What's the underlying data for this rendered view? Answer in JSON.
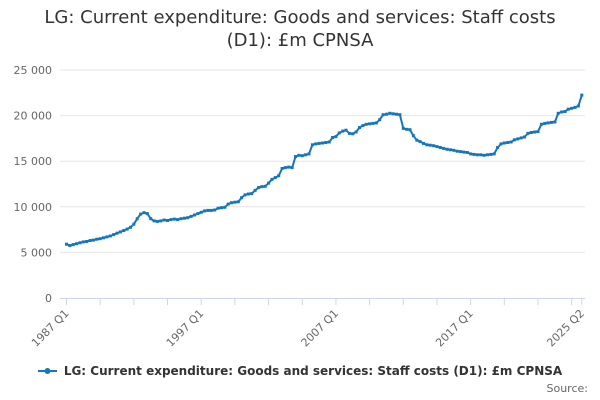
{
  "title": "LG: Current expenditure: Goods and services: Staff costs (D1): £m CPNSA",
  "source_label": "Source:",
  "legend": {
    "label": "LG: Current expenditure: Goods and services: Staff costs (D1): £m CPNSA",
    "marker": "line-with-dot"
  },
  "colors": {
    "series": "#1776bb",
    "grid": "#e6e6e6",
    "axis": "#ccd6eb",
    "tick_label": "#666666",
    "title": "#333333"
  },
  "chart_data": {
    "type": "line",
    "title": "LG: Current expenditure: Goods and services: Staff costs (D1): £m CPNSA",
    "unit": "£m",
    "frequency": "quarterly",
    "x_start": "1987 Q1",
    "x_end": "2025 Q2",
    "ylim": [
      0,
      25000
    ],
    "grid": "horizontal",
    "legend_position": "bottom",
    "marker_shape": "square",
    "y_ticks": [
      {
        "value": 0,
        "label": "0"
      },
      {
        "value": 5000,
        "label": "5 000"
      },
      {
        "value": 10000,
        "label": "10 000"
      },
      {
        "value": 15000,
        "label": "15 000"
      },
      {
        "value": 20000,
        "label": "20 000"
      },
      {
        "value": 25000,
        "label": "25 000"
      }
    ],
    "x_tick_interval_quarters": 10,
    "x_labeled_ticks": [
      {
        "index": 0,
        "label": "1987 Q1"
      },
      {
        "index": 40,
        "label": "1997 Q1"
      },
      {
        "index": 80,
        "label": "2007 Q1"
      },
      {
        "index": 120,
        "label": "2017 Q1"
      },
      {
        "index": 153,
        "label": "2025 Q2"
      }
    ],
    "values": [
      5900,
      5750,
      5850,
      5950,
      6050,
      6150,
      6200,
      6300,
      6350,
      6450,
      6500,
      6600,
      6700,
      6800,
      6950,
      7100,
      7250,
      7400,
      7550,
      7750,
      8100,
      8700,
      9200,
      9350,
      9250,
      8700,
      8450,
      8400,
      8450,
      8550,
      8500,
      8600,
      8650,
      8600,
      8700,
      8750,
      8800,
      8950,
      9100,
      9250,
      9400,
      9550,
      9600,
      9600,
      9650,
      9850,
      9900,
      9950,
      10300,
      10450,
      10500,
      10550,
      11000,
      11300,
      11400,
      11450,
      11800,
      12100,
      12200,
      12250,
      12600,
      13000,
      13200,
      13400,
      14200,
      14300,
      14350,
      14300,
      15500,
      15650,
      15600,
      15700,
      15800,
      16800,
      16900,
      16950,
      17000,
      17050,
      17100,
      17600,
      17700,
      18100,
      18300,
      18400,
      18050,
      18000,
      18200,
      18700,
      18900,
      19050,
      19100,
      19150,
      19200,
      19550,
      20100,
      20150,
      20250,
      20200,
      20150,
      20100,
      18600,
      18500,
      18450,
      17800,
      17300,
      17150,
      16950,
      16800,
      16750,
      16700,
      16600,
      16500,
      16400,
      16300,
      16250,
      16200,
      16100,
      16050,
      16000,
      15950,
      15800,
      15750,
      15700,
      15700,
      15650,
      15700,
      15750,
      15800,
      16500,
      16900,
      17000,
      17050,
      17100,
      17350,
      17450,
      17550,
      17650,
      18050,
      18150,
      18200,
      18250,
      19050,
      19150,
      19200,
      19250,
      19300,
      20250,
      20400,
      20450,
      20700,
      20800,
      20900,
      21050,
      22250
    ]
  }
}
